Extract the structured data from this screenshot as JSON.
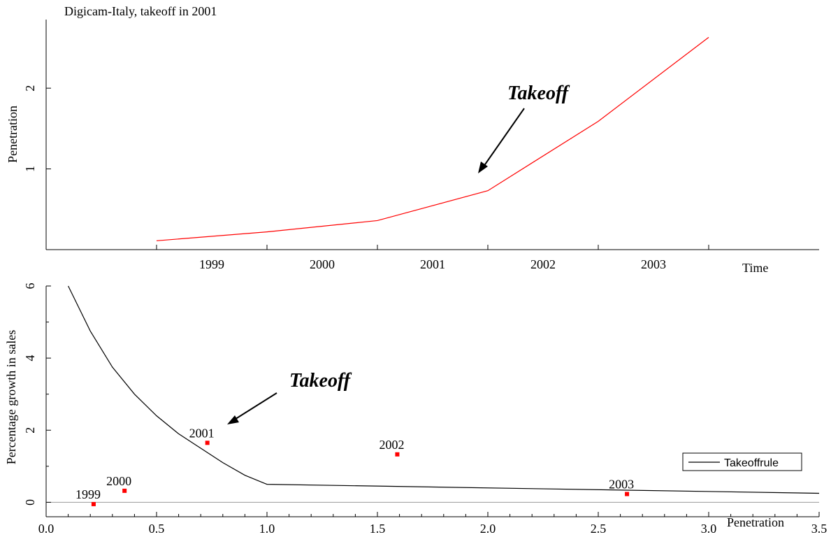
{
  "chart_data": [
    {
      "type": "line",
      "title": "Digicam-Italy, takeoff in 2001",
      "xlabel": "Time",
      "ylabel": "Penetration",
      "categories": [
        "1999",
        "2000",
        "2001",
        "2002",
        "2003"
      ],
      "x_numeric": [
        1999,
        2000,
        2001,
        2002,
        2003
      ],
      "series": [
        {
          "values": [
            0.11,
            0.22,
            0.36,
            0.73,
            1.59,
            2.63
          ],
          "x": [
            1998.5,
            1999.5,
            2000.5,
            2001.5,
            2002.5,
            2003.5
          ],
          "color": "#ff0000"
        }
      ],
      "xlim": [
        1997.5,
        2004.5
      ],
      "ylim": [
        0,
        2.85
      ],
      "yticks": [
        1,
        2
      ],
      "grid": false,
      "annotation": {
        "text": "Takeoff",
        "target_x": 2001.4,
        "target_y": 0.92
      }
    },
    {
      "type": "scatter",
      "xlabel": "Penetration",
      "ylabel": "Percentage growth in sales",
      "xlim": [
        0,
        3.5
      ],
      "ylim": [
        -0.4,
        6
      ],
      "xticks": [
        "0.0",
        "0.5",
        "1.0",
        "1.5",
        "2.0",
        "2.5",
        "3.0",
        "3.5"
      ],
      "yticks": [
        "0",
        "2",
        "4",
        "6"
      ],
      "grid": false,
      "legend": {
        "position": "right",
        "entries": [
          "Takeoffrule"
        ]
      },
      "points": [
        {
          "label": "1999",
          "x": 0.215,
          "y": -0.05
        },
        {
          "label": "2000",
          "x": 0.355,
          "y": 0.32
        },
        {
          "label": "2001",
          "x": 0.73,
          "y": 1.65
        },
        {
          "label": "2002",
          "x": 1.59,
          "y": 1.33
        },
        {
          "label": "2003",
          "x": 2.63,
          "y": 0.23
        }
      ],
      "points_color": "#ff0000",
      "rule_series": {
        "name": "Takeoffrule",
        "color": "#000000",
        "x": [
          0.1,
          0.2,
          0.3,
          0.4,
          0.5,
          0.6,
          0.7,
          0.8,
          0.9,
          1.0,
          3.5
        ],
        "y": [
          6.0,
          4.75,
          3.75,
          3.0,
          2.4,
          1.9,
          1.5,
          1.1,
          0.75,
          0.5,
          0.25
        ]
      },
      "baseline": {
        "y": 0,
        "color": "#999999"
      },
      "annotation": {
        "text": "Takeoff",
        "target_x": 0.82,
        "target_y": 2.1
      }
    }
  ]
}
